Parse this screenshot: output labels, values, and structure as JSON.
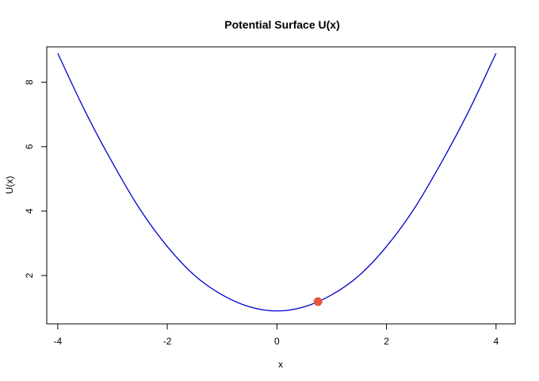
{
  "chart_data": {
    "type": "line",
    "title": "Potential Surface U(x)",
    "xlabel": "x",
    "ylabel": "U(x)",
    "xlim": [
      -4.2,
      4.35
    ],
    "ylim": [
      0.5,
      9.1
    ],
    "x_ticks": [
      -4,
      -2,
      0,
      2,
      4
    ],
    "y_ticks": [
      2,
      4,
      6,
      8
    ],
    "grid": false,
    "series": [
      {
        "color": "#0000cc",
        "x": [
          -4.0,
          -3.5,
          -3.0,
          -2.5,
          -2.0,
          -1.5,
          -1.0,
          -0.5,
          0.0,
          0.5,
          1.0,
          1.5,
          2.0,
          2.5,
          3.0,
          3.5,
          4.0
        ],
        "y": [
          8.9,
          7.1,
          5.5,
          4.06,
          2.9,
          2.0,
          1.4,
          1.03,
          0.9,
          1.03,
          1.4,
          2.0,
          2.9,
          4.06,
          5.5,
          7.1,
          8.9
        ]
      }
    ],
    "marker": {
      "x": 0.75,
      "y": 1.19,
      "color": "#e8553e"
    }
  }
}
